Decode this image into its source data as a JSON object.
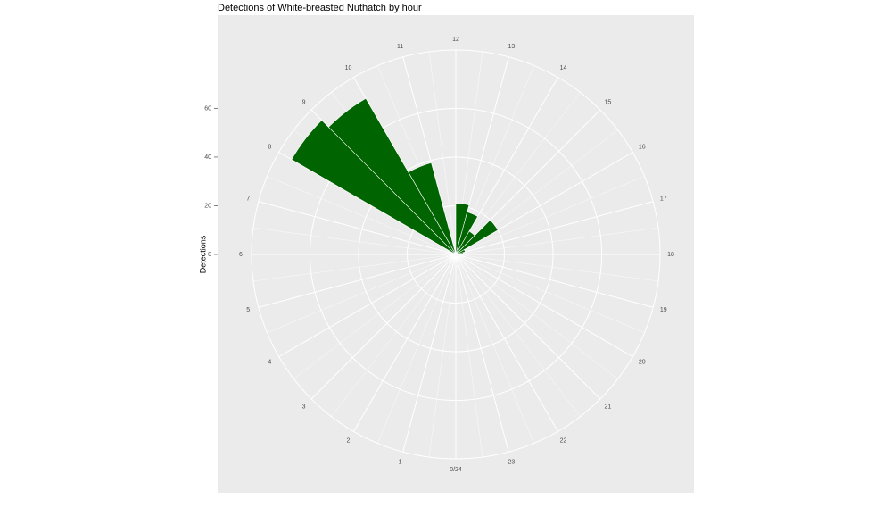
{
  "chart_data": {
    "type": "polar-bar",
    "title": "Detections of White-breasted Nuthatch by hour",
    "y_label": "Detections",
    "categories": [
      "0/24",
      "1",
      "2",
      "3",
      "4",
      "5",
      "6",
      "7",
      "8",
      "9",
      "10",
      "11",
      "12",
      "13",
      "14",
      "15",
      "16",
      "17",
      "18",
      "19",
      "20",
      "21",
      "22",
      "23"
    ],
    "values": [
      0,
      0,
      0,
      0,
      0,
      0,
      0,
      0,
      78,
      74,
      39,
      0,
      21,
      18,
      11,
      20,
      4,
      3,
      0,
      0,
      0,
      0,
      0,
      0
    ],
    "color": "#006400",
    "ylim": [
      0,
      84
    ],
    "yticks": [
      0,
      20,
      40,
      60
    ],
    "grid": true
  }
}
